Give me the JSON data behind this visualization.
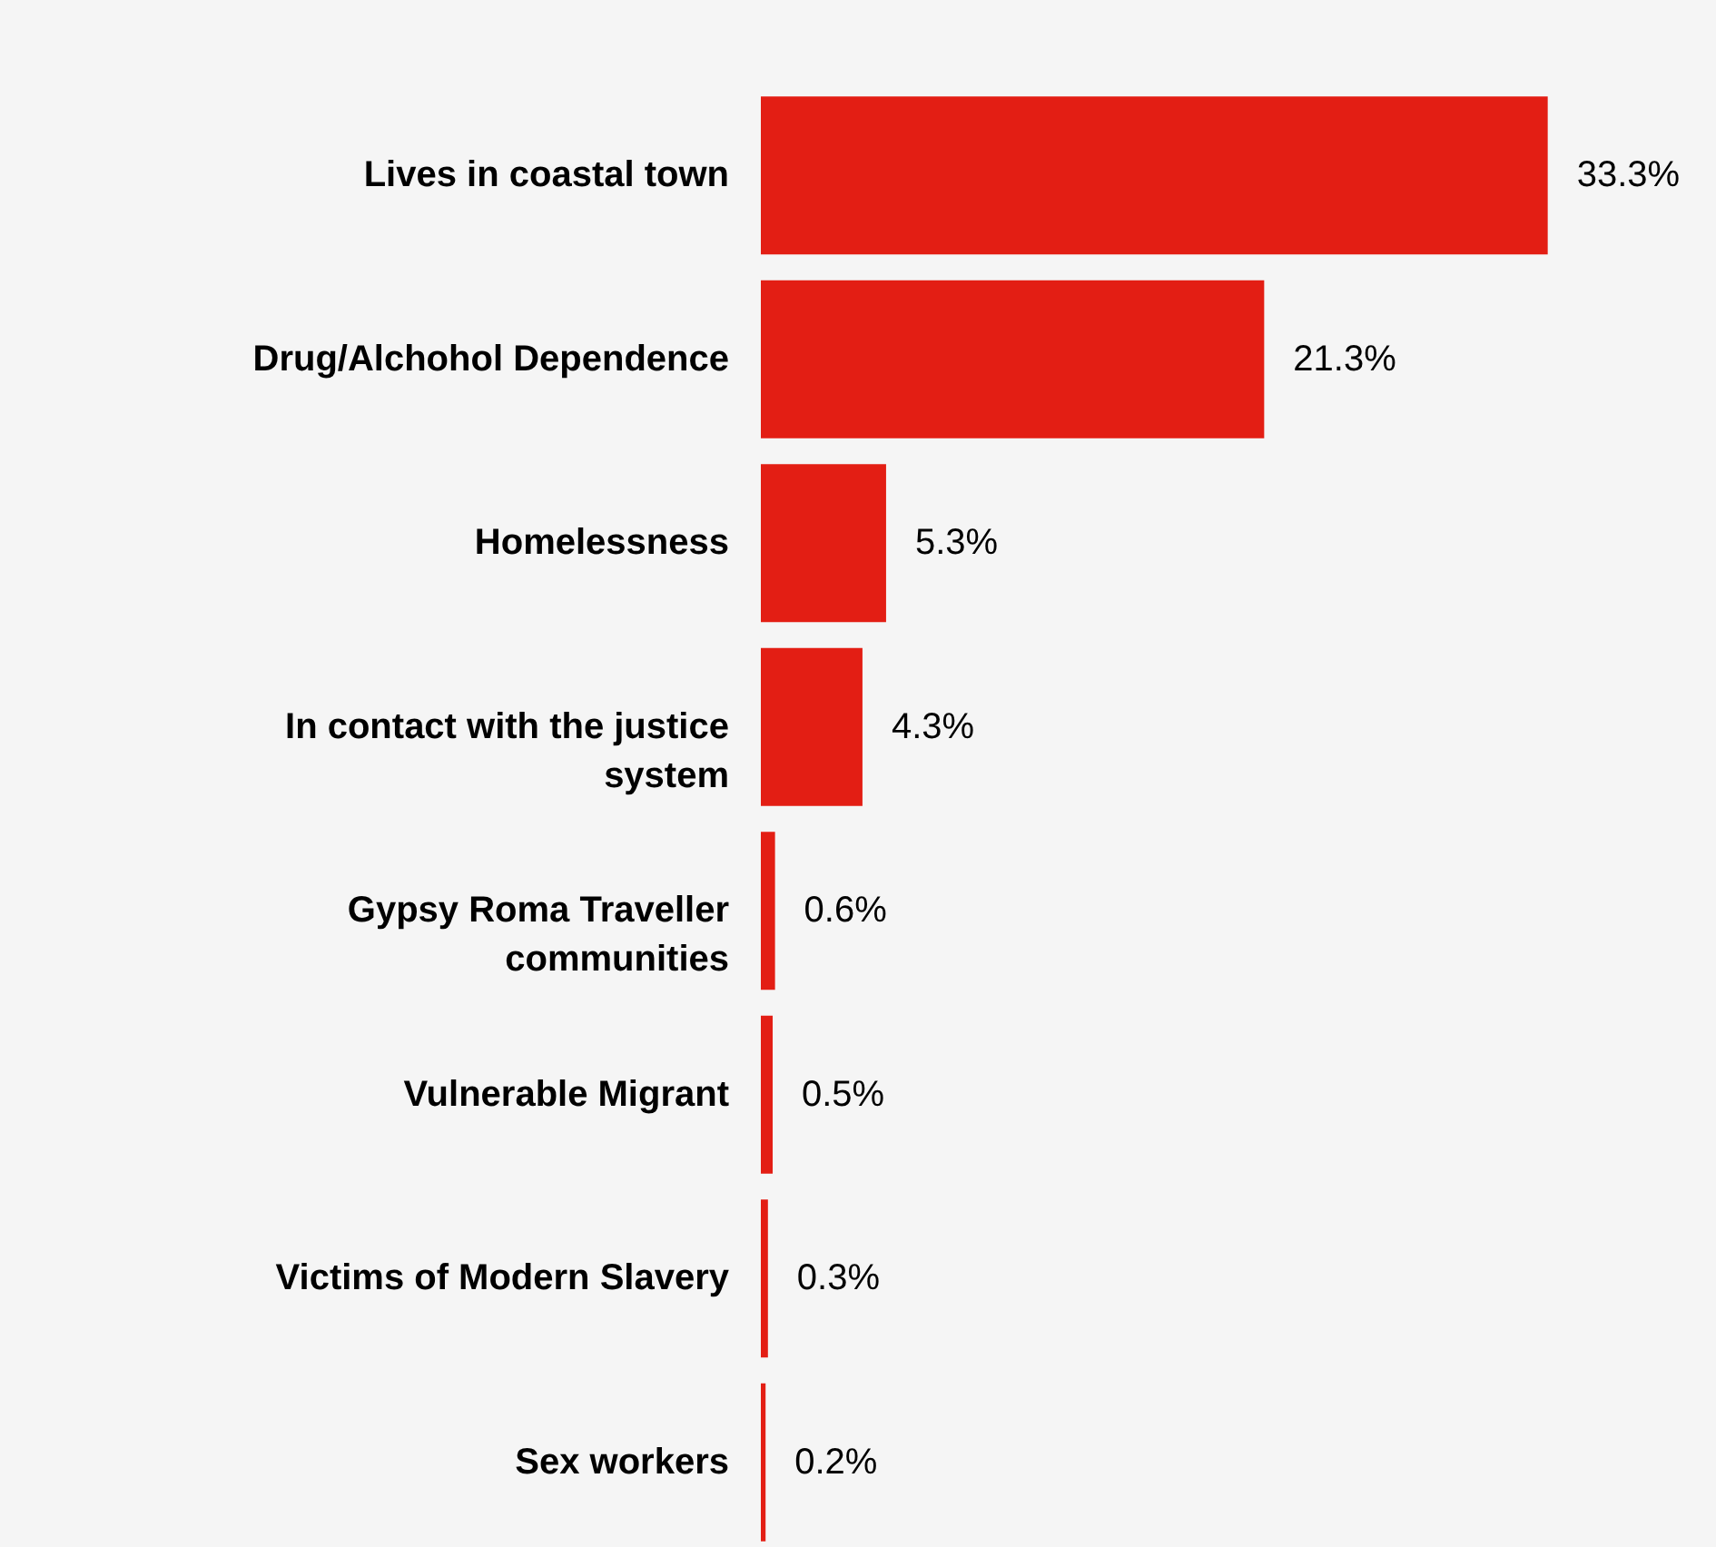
{
  "chart_data": {
    "type": "bar",
    "orientation": "horizontal",
    "categories": [
      "Lives in coastal town",
      "Drug/Alchohol Dependence",
      "Homelessness",
      "In contact with the justice system",
      "Gypsy Roma Traveller communities",
      "Vulnerable Migrant",
      "Victims of Modern Slavery",
      "Sex workers"
    ],
    "values": [
      33.3,
      21.3,
      5.3,
      4.3,
      0.6,
      0.5,
      0.3,
      0.2
    ],
    "value_labels": [
      "33.3%",
      "21.3%",
      "5.3%",
      "4.3%",
      "0.6%",
      "0.5%",
      "0.3%",
      "0.2%"
    ],
    "color": "#e31e14"
  }
}
